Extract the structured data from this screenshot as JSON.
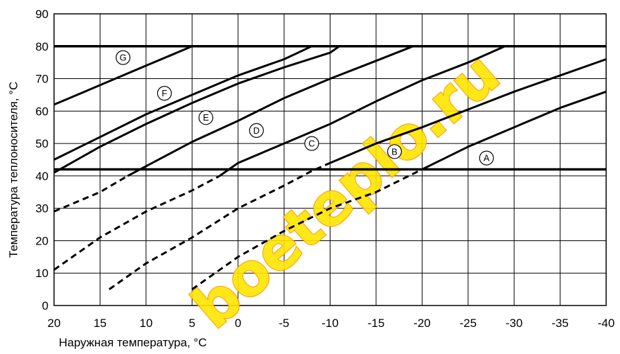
{
  "chart_data": {
    "type": "line",
    "xlabel": "Наружная температура, °C",
    "ylabel": "Температура теплоносителя, °C",
    "xlim": [
      20,
      -40
    ],
    "ylim": [
      0,
      90
    ],
    "x_ticks": [
      20,
      15,
      10,
      5,
      0,
      -5,
      -10,
      -15,
      -20,
      -25,
      -30,
      -35,
      -40
    ],
    "y_ticks": [
      0,
      10,
      20,
      30,
      40,
      50,
      60,
      70,
      80,
      90
    ],
    "x_tick_labels": [
      "20",
      "15",
      "10",
      "5",
      "0",
      "-5",
      "-10",
      "-15",
      "-20",
      "-25",
      "-30",
      "-35",
      "-40"
    ],
    "y_tick_labels": [
      "0",
      "10",
      "20",
      "30",
      "40",
      "50",
      "60",
      "70",
      "80",
      "90"
    ],
    "grid": true,
    "reference_lines": [
      {
        "y": 80,
        "style": "solid"
      },
      {
        "y": 42,
        "style": "solid"
      }
    ],
    "series": [
      {
        "name": "A",
        "points": [
          [
            5,
            5
          ],
          [
            0,
            15
          ],
          [
            -5,
            23
          ],
          [
            -10,
            30
          ],
          [
            -15,
            35
          ],
          [
            -20,
            42
          ],
          [
            -25,
            49
          ],
          [
            -30,
            55
          ],
          [
            -35,
            61
          ],
          [
            -40,
            66
          ]
        ],
        "solid_from_index": 5,
        "label_pos": [
          -27,
          45.5
        ]
      },
      {
        "name": "B",
        "points": [
          [
            14,
            5
          ],
          [
            10,
            13
          ],
          [
            5,
            21
          ],
          [
            0,
            30
          ],
          [
            -5,
            37
          ],
          [
            -8,
            41.5
          ],
          [
            -10,
            44
          ],
          [
            -15,
            50
          ],
          [
            -20,
            55
          ],
          [
            -25,
            60.5
          ],
          [
            -30,
            66
          ],
          [
            -35,
            71
          ],
          [
            -40,
            76
          ]
        ],
        "solid_from_index": 6,
        "label_pos": [
          -17,
          47.5
        ]
      },
      {
        "name": "C",
        "points": [
          [
            20,
            11
          ],
          [
            15,
            21
          ],
          [
            10,
            29
          ],
          [
            5,
            35.5
          ],
          [
            2,
            40
          ],
          [
            0,
            44
          ],
          [
            -5,
            50
          ],
          [
            -10,
            56
          ],
          [
            -15,
            63
          ],
          [
            -20,
            69.5
          ],
          [
            -25,
            75
          ],
          [
            -29,
            80
          ]
        ],
        "solid_from_index": 4,
        "label_pos": [
          -8,
          50
        ]
      },
      {
        "name": "D",
        "points": [
          [
            20,
            29
          ],
          [
            15,
            35
          ],
          [
            12,
            40
          ],
          [
            10,
            43
          ],
          [
            5,
            50.5
          ],
          [
            0,
            57
          ],
          [
            -5,
            64
          ],
          [
            -10,
            70
          ],
          [
            -15,
            75.5
          ],
          [
            -19,
            80
          ]
        ],
        "solid_from_index": 2,
        "label_pos": [
          -2,
          54
        ]
      },
      {
        "name": "E",
        "points": [
          [
            20,
            41
          ],
          [
            15,
            49
          ],
          [
            10,
            56
          ],
          [
            5,
            62.5
          ],
          [
            0,
            68.5
          ],
          [
            -5,
            73.5
          ],
          [
            -10,
            78
          ],
          [
            -11,
            80
          ]
        ],
        "solid_from_index": 0,
        "label_pos": [
          3.5,
          58
        ]
      },
      {
        "name": "F",
        "points": [
          [
            20,
            45
          ],
          [
            15,
            52
          ],
          [
            10,
            59
          ],
          [
            5,
            65
          ],
          [
            0,
            71
          ],
          [
            -5,
            76
          ],
          [
            -8,
            80
          ]
        ],
        "solid_from_index": 0,
        "label_pos": [
          8,
          65.5
        ]
      },
      {
        "name": "G",
        "points": [
          [
            20,
            62
          ],
          [
            15,
            68
          ],
          [
            10,
            74
          ],
          [
            5,
            80
          ]
        ],
        "solid_from_index": 0,
        "label_pos": [
          12.5,
          76.5
        ]
      }
    ]
  },
  "watermark": {
    "text": "boeteplo.ru",
    "fill": "#ffe600",
    "stroke": "#ff9c00"
  }
}
